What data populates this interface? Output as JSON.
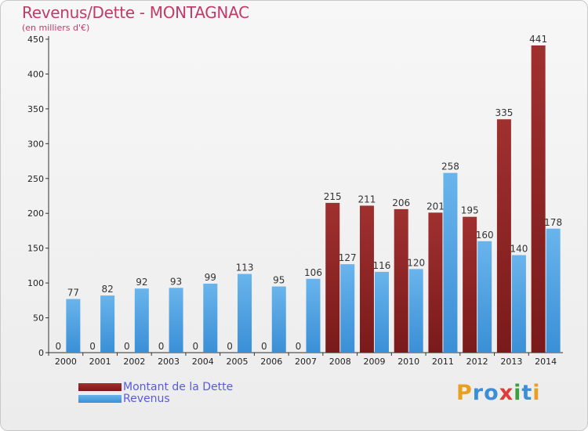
{
  "colors": {
    "dette": "#7a1a1a",
    "dette_light": "#a03030",
    "revenus": "#3a8fd6",
    "revenus_light": "#69b4ec",
    "title": "#c23a6a",
    "legend_text": "#5a5ad8"
  },
  "chart_data": {
    "type": "bar",
    "title": "Revenus/Dette - MONTAGNAC",
    "subtitle": "(en milliers d'€)",
    "categories": [
      "2000",
      "2001",
      "2002",
      "2003",
      "2004",
      "2005",
      "2006",
      "2007",
      "2008",
      "2009",
      "2010",
      "2011",
      "2012",
      "2013",
      "2014"
    ],
    "series": [
      {
        "name": "Montant de la Dette",
        "values": [
          0,
          0,
          0,
          0,
          0,
          0,
          0,
          0,
          215,
          211,
          206,
          201,
          195,
          335,
          441
        ]
      },
      {
        "name": "Revenus",
        "values": [
          77,
          82,
          92,
          93,
          99,
          113,
          95,
          106,
          127,
          116,
          120,
          258,
          160,
          140,
          178
        ]
      }
    ],
    "ylim": [
      0,
      450
    ],
    "yticks": [
      0,
      50,
      100,
      150,
      200,
      250,
      300,
      350,
      400,
      450
    ],
    "grid": false,
    "legend_position": "bottom-left"
  },
  "logo": {
    "text": "Proxiti",
    "letters": [
      {
        "char": "P",
        "color": "#e8a020"
      },
      {
        "char": "r",
        "color": "#3a8fd6"
      },
      {
        "char": "o",
        "color": "#3a8fd6"
      },
      {
        "char": "x",
        "color": "#e03a3a"
      },
      {
        "char": "i",
        "color": "#3aa040"
      },
      {
        "char": "t",
        "color": "#3a8fd6"
      },
      {
        "char": "i",
        "color": "#e8a020"
      }
    ]
  }
}
